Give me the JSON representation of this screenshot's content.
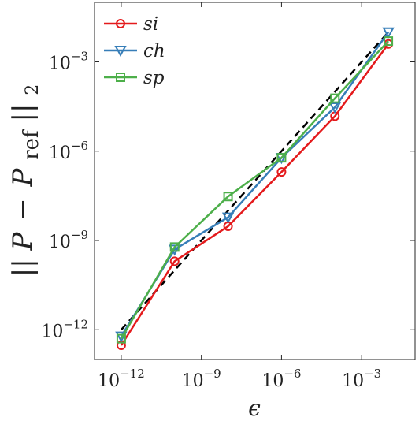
{
  "chart_data": {
    "type": "line",
    "xlabel": "ϵ",
    "ylabel": "||P − P_ref||_2",
    "ylabel_parts": {
      "left": "||",
      "P1": "P",
      "minus": "−",
      "P2": "P",
      "sub": "ref",
      "right": "||",
      "norm": "2"
    },
    "x_scale": "log",
    "y_scale": "log",
    "xlim": [
      1e-13,
      0.1
    ],
    "ylim": [
      1e-13,
      0.1
    ],
    "x_ticks": [
      {
        "base": "10",
        "exp": "−12",
        "value": 1e-12
      },
      {
        "base": "10",
        "exp": "−9",
        "value": 1e-09
      },
      {
        "base": "10",
        "exp": "−6",
        "value": 1e-06
      },
      {
        "base": "10",
        "exp": "−3",
        "value": 0.001
      }
    ],
    "y_ticks": [
      {
        "base": "10",
        "exp": "−12",
        "value": 1e-12
      },
      {
        "base": "10",
        "exp": "−9",
        "value": 1e-09
      },
      {
        "base": "10",
        "exp": "−6",
        "value": 1e-06
      },
      {
        "base": "10",
        "exp": "−3",
        "value": 0.001
      }
    ],
    "grid": false,
    "legend_position": "top-left",
    "x": [
      1e-12,
      1e-10,
      1e-08,
      1e-06,
      0.0001,
      0.01
    ],
    "series": [
      {
        "name": "si",
        "color": "#e41a1c",
        "marker": "circle",
        "values": [
          3e-13,
          2e-10,
          3e-09,
          2e-07,
          1.5e-05,
          0.004
        ]
      },
      {
        "name": "ch",
        "color": "#377eb8",
        "marker": "triangle-down",
        "values": [
          6e-13,
          5e-10,
          6e-09,
          6e-07,
          3e-05,
          0.01
        ]
      },
      {
        "name": "sp",
        "color": "#4daf4a",
        "marker": "square",
        "values": [
          5e-13,
          6e-10,
          3e-08,
          6e-07,
          6e-05,
          0.005
        ]
      }
    ],
    "reference_line": {
      "style": "dashed",
      "color": "#000000",
      "x": [
        1e-12,
        0.01
      ],
      "y": [
        1e-12,
        0.01
      ]
    }
  }
}
